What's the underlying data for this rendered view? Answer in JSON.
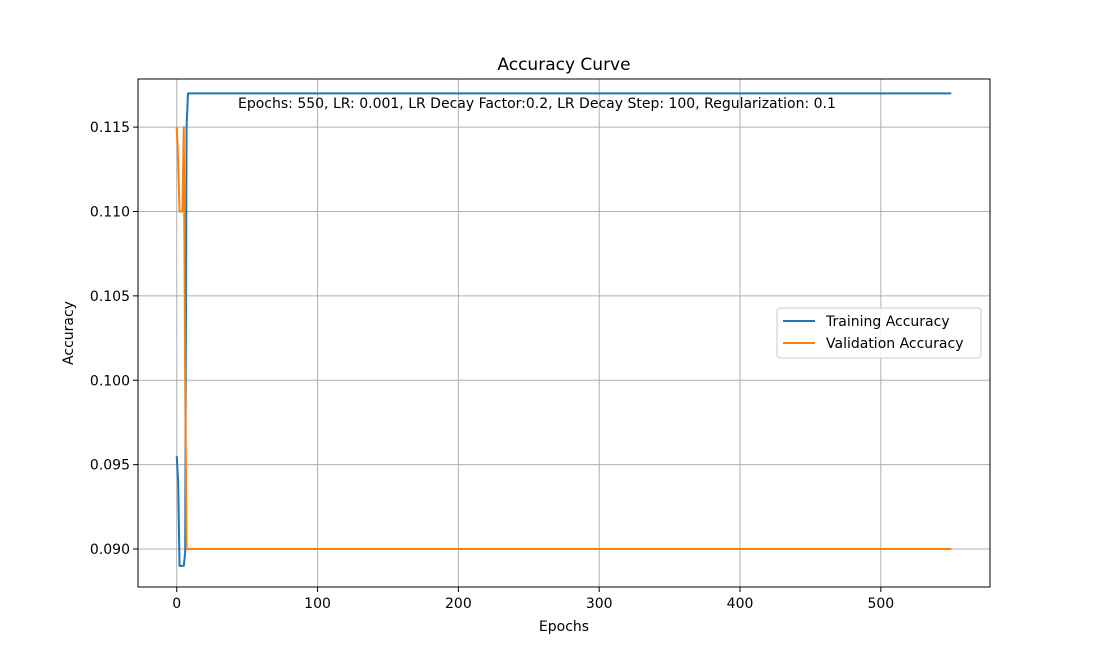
{
  "chart_data": {
    "type": "line",
    "title": "Accuracy Curve",
    "xlabel": "Epochs",
    "ylabel": "Accuracy",
    "xlim": [
      -27.5,
      577.5
    ],
    "ylim": [
      0.08775,
      0.11785
    ],
    "xticks": [
      0,
      100,
      200,
      300,
      400,
      500
    ],
    "xtick_labels": [
      "0",
      "100",
      "200",
      "300",
      "400",
      "500"
    ],
    "yticks": [
      0.09,
      0.095,
      0.1,
      0.105,
      0.11,
      0.115
    ],
    "ytick_labels": [
      "0.090",
      "0.095",
      "0.100",
      "0.105",
      "0.110",
      "0.115"
    ],
    "grid": true,
    "legend_position": "center-right",
    "annotation": "Epochs: 550, LR: 0.001, LR Decay Factor:0.2, LR Decay Step: 100, Regularization: 0.1",
    "series": [
      {
        "name": "Training Accuracy",
        "color": "#1f77b4",
        "x": [
          0,
          1,
          2,
          3,
          4,
          5,
          6,
          7,
          8,
          550
        ],
        "y": [
          0.0955,
          0.094,
          0.089,
          0.089,
          0.089,
          0.089,
          0.0898,
          0.115,
          0.117,
          0.117
        ]
      },
      {
        "name": "Validation Accuracy",
        "color": "#ff7f0e",
        "x": [
          0,
          1,
          2,
          3,
          4,
          5,
          6,
          7,
          8,
          550
        ],
        "y": [
          0.115,
          0.113,
          0.11,
          0.11,
          0.11,
          0.115,
          0.1,
          0.09,
          0.09,
          0.09
        ]
      }
    ]
  }
}
